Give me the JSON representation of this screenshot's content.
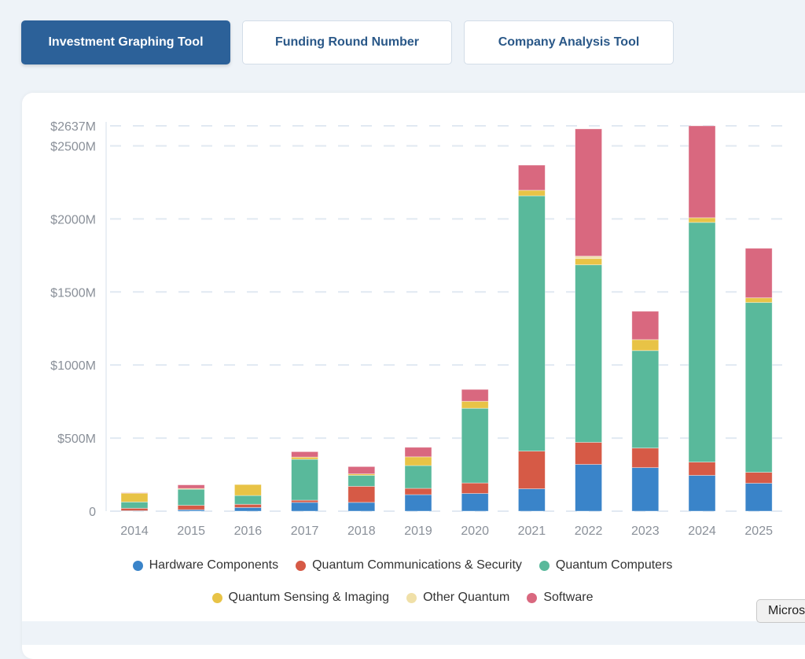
{
  "tabs": [
    {
      "label": "Investment Graphing Tool",
      "active": true
    },
    {
      "label": "Funding Round Number",
      "active": false
    },
    {
      "label": "Company Analysis Tool",
      "active": false
    }
  ],
  "partial_button": "Micros",
  "chart_data": {
    "type": "bar",
    "stacked": true,
    "title": "",
    "xlabel": "",
    "ylabel": "",
    "ylim": [
      0,
      2637
    ],
    "y_ticks": [
      {
        "value": 0,
        "label": "0"
      },
      {
        "value": 500,
        "label": "$500M"
      },
      {
        "value": 1000,
        "label": "$1000M"
      },
      {
        "value": 1500,
        "label": "$1500M"
      },
      {
        "value": 2000,
        "label": "$2000M"
      },
      {
        "value": 2500,
        "label": "$2500M"
      },
      {
        "value": 2637,
        "label": "$2637M"
      }
    ],
    "grid": true,
    "legend_position": "bottom",
    "categories": [
      "2014",
      "2015",
      "2016",
      "2017",
      "2018",
      "2019",
      "2020",
      "2021",
      "2022",
      "2023",
      "2024",
      "2025"
    ],
    "series": [
      {
        "name": "Hardware Components",
        "color": "#3a84c9",
        "values": [
          3,
          10,
          25,
          60,
          60,
          113,
          121,
          153,
          320,
          298,
          245,
          191
        ]
      },
      {
        "name": "Quantum Communications & Security",
        "color": "#d65a46",
        "values": [
          17,
          30,
          22,
          15,
          110,
          43,
          72,
          258,
          151,
          134,
          91,
          75
        ]
      },
      {
        "name": "Quantum Computers",
        "color": "#59b99b",
        "values": [
          43,
          110,
          60,
          280,
          75,
          156,
          511,
          1747,
          1215,
          667,
          1640,
          1162
        ]
      },
      {
        "name": "Quantum Sensing & Imaging",
        "color": "#e8c346",
        "values": [
          60,
          5,
          75,
          15,
          10,
          60,
          48,
          38,
          43,
          75,
          32,
          32
        ]
      },
      {
        "name": "Other Quantum",
        "color": "#f0e0a8",
        "values": [
          0,
          0,
          0,
          0,
          0,
          0,
          0,
          0,
          16,
          0,
          0,
          0
        ]
      },
      {
        "name": "Software",
        "color": "#d9687f",
        "values": [
          3,
          25,
          0,
          37,
          50,
          65,
          81,
          172,
          871,
          194,
          629,
          339
        ]
      }
    ]
  }
}
